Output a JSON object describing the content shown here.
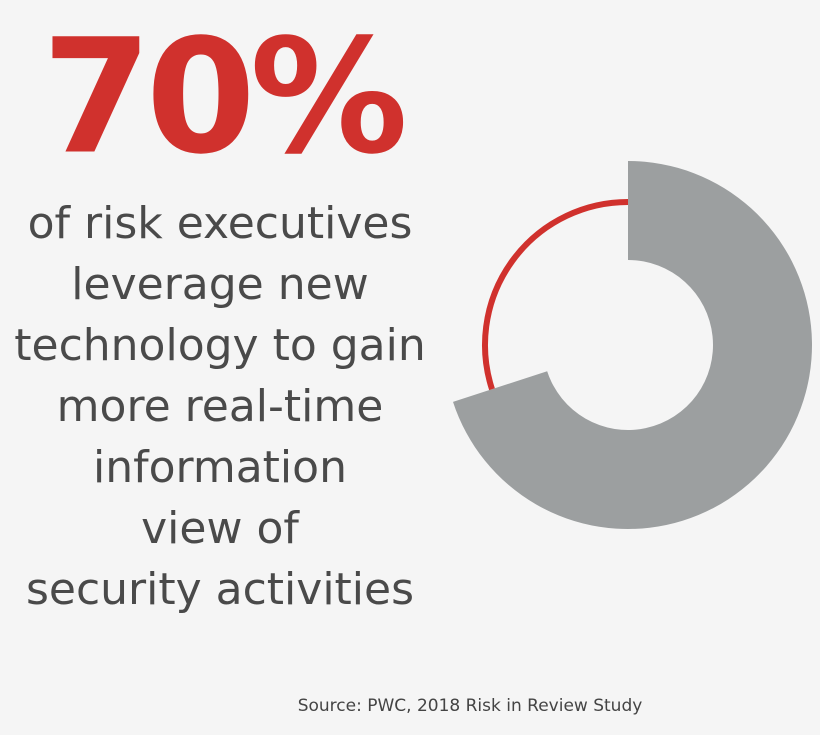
{
  "chart_data": {
    "type": "donut",
    "values": [
      70,
      30
    ],
    "value_labels": [
      "70%",
      null
    ],
    "colors": [
      "#9c9fa0",
      "#d0312d"
    ],
    "description": [
      "of risk executives",
      "leverage new",
      "technology to gain",
      "more real-time",
      "information",
      "view of",
      "security activities"
    ],
    "source": "Source: PWC, 2018 Risk in Review Study"
  }
}
